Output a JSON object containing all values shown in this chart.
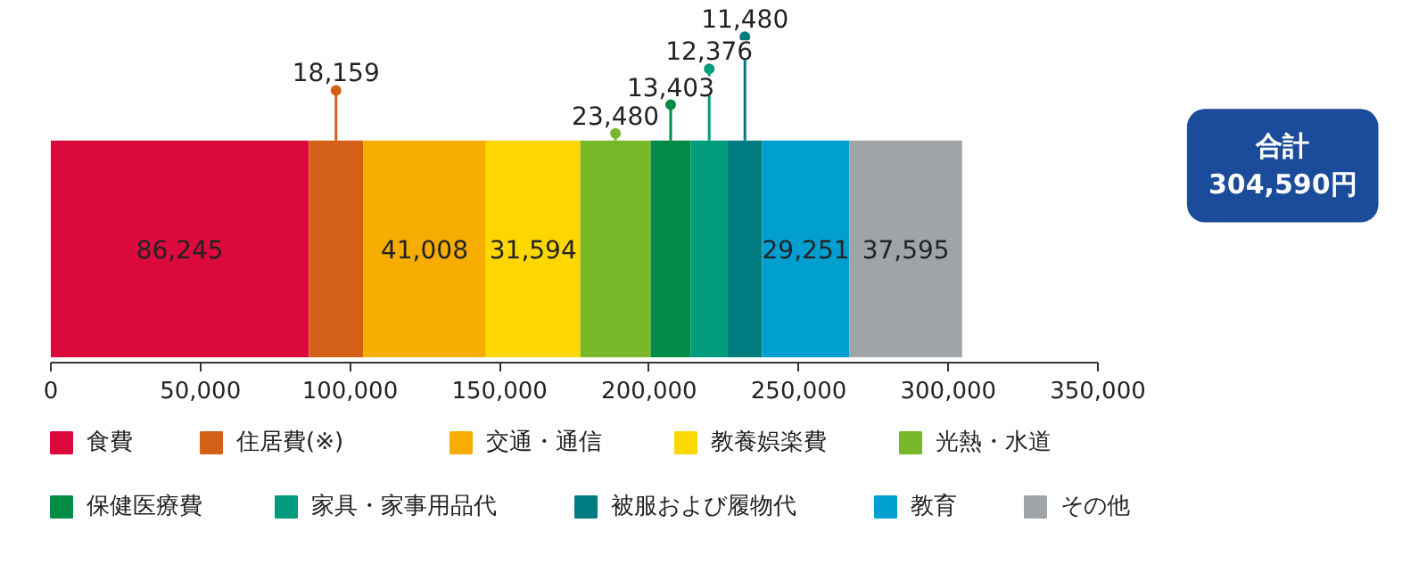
{
  "chart_data": {
    "type": "bar",
    "orientation": "horizontal",
    "stacked": true,
    "categories": [
      null
    ],
    "series": [
      {
        "name": "食費",
        "color": "#dc0a3c",
        "values": [
          86245
        ],
        "value_labels": [
          "86,245"
        ]
      },
      {
        "name": "住居費(※)",
        "color": "#d45f16",
        "values": [
          18159
        ],
        "value_labels": [
          "18,159"
        ]
      },
      {
        "name": "交通・通信",
        "color": "#f6ad00",
        "values": [
          41008
        ],
        "value_labels": [
          "41,008"
        ]
      },
      {
        "name": "教養娯楽費",
        "color": "#fcd800",
        "values": [
          31594
        ],
        "value_labels": [
          "31,594"
        ]
      },
      {
        "name": "光熱・水道",
        "color": "#78b72a",
        "values": [
          23480
        ],
        "value_labels": [
          "23,480"
        ]
      },
      {
        "name": "保健医療費",
        "color": "#008c46",
        "values": [
          13403
        ],
        "value_labels": [
          "13,403"
        ]
      },
      {
        "name": "家具・家事用品代",
        "color": "#009b7d",
        "values": [
          12376
        ],
        "value_labels": [
          "12,376"
        ]
      },
      {
        "name": "被服および履物代",
        "color": "#007b7f",
        "values": [
          11480
        ],
        "value_labels": [
          "11,480"
        ]
      },
      {
        "name": "教育",
        "color": "#009fd0",
        "values": [
          29251
        ],
        "value_labels": [
          "29,251"
        ]
      },
      {
        "name": "その他",
        "color": "#9fa4a8",
        "values": [
          37595
        ],
        "value_labels": [
          "37,595"
        ]
      }
    ],
    "xlim": [
      0,
      350000
    ],
    "xticks": [
      {
        "value": 0,
        "label": "0"
      },
      {
        "value": 50000,
        "label": "50,000"
      },
      {
        "value": 100000,
        "label": "100,000"
      },
      {
        "value": 150000,
        "label": "150,000"
      },
      {
        "value": 200000,
        "label": "200,000"
      },
      {
        "value": 250000,
        "label": "250,000"
      },
      {
        "value": 300000,
        "label": "300,000"
      },
      {
        "value": 350000,
        "label": "350,000"
      }
    ],
    "grid": false,
    "legend": "bottom",
    "annotations": [
      "合計\n304,590円"
    ]
  }
}
